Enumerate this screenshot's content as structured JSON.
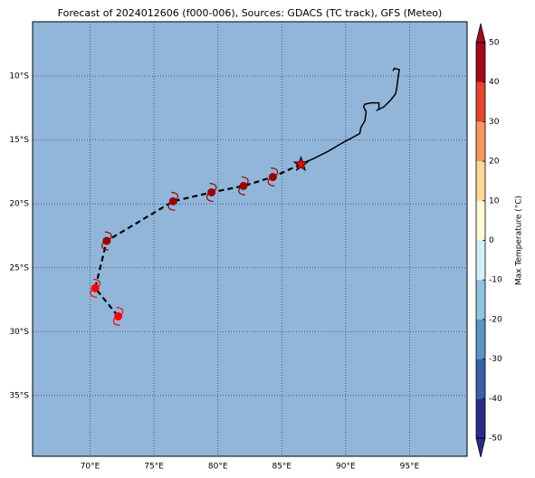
{
  "chart_data": {
    "type": "map",
    "title": "Forecast of 2024012606 (f000-006), Sources: GDACS (TC track), GFS (Meteo)",
    "xlim": [
      65.5,
      99.5
    ],
    "ylim": [
      -39.75,
      -5.75
    ],
    "xticks": [
      {
        "value": 70,
        "label": "70°E"
      },
      {
        "value": 75,
        "label": "75°E"
      },
      {
        "value": 80,
        "label": "80°E"
      },
      {
        "value": 85,
        "label": "85°E"
      },
      {
        "value": 90,
        "label": "90°E"
      },
      {
        "value": 95,
        "label": "95°E"
      }
    ],
    "yticks": [
      {
        "value": -10,
        "label": "10°S"
      },
      {
        "value": -15,
        "label": "15°S"
      },
      {
        "value": -20,
        "label": "20°S"
      },
      {
        "value": -25,
        "label": "25°S"
      },
      {
        "value": -30,
        "label": "30°S"
      },
      {
        "value": -35,
        "label": "35°S"
      }
    ],
    "grid": true,
    "ocean_color": "#92b6da",
    "past_track": {
      "color": "#000000",
      "lon": [
        86.4,
        87.4,
        88.6,
        89.8,
        91.1,
        91.2,
        91.5,
        91.6,
        91.4,
        91.5,
        92.0,
        92.6,
        92.6,
        92.4,
        93.0,
        93.5,
        93.9,
        94.0,
        94.1,
        94.2,
        93.8,
        93.7
      ],
      "lat": [
        -16.9,
        -16.5,
        -15.9,
        -15.2,
        -14.5,
        -14.0,
        -13.5,
        -12.8,
        -12.4,
        -12.2,
        -12.1,
        -12.1,
        -12.6,
        -12.7,
        -12.4,
        -11.9,
        -11.4,
        -10.9,
        -10.1,
        -9.5,
        -9.4,
        -9.6
      ]
    },
    "current_position": {
      "lon": 86.5,
      "lat": -16.9,
      "color": "#ff0000"
    },
    "forecast_track": {
      "lon": [
        86.5,
        84.3,
        82.0,
        79.5,
        76.5,
        71.3,
        70.4,
        72.2
      ],
      "lat": [
        -16.9,
        -17.9,
        -18.6,
        -19.1,
        -19.8,
        -22.9,
        -26.6,
        -28.8
      ],
      "colors": [
        null,
        "#990000",
        "#990000",
        "#990000",
        "#990000",
        "#990000",
        "#ff0000",
        "#ff0000"
      ]
    },
    "colorbar": {
      "label": "Max Temperature (°C)",
      "lim": [
        -50,
        50
      ],
      "ticks": [
        -50,
        -40,
        -30,
        -20,
        -10,
        0,
        10,
        20,
        30,
        40,
        50
      ],
      "colors": [
        "#2b2c8a",
        "#3b5fa8",
        "#5d93c5",
        "#92c3de",
        "#d6eef5",
        "#fffbd6",
        "#fdd896",
        "#f7975c",
        "#e2442d",
        "#a3081f"
      ]
    }
  }
}
